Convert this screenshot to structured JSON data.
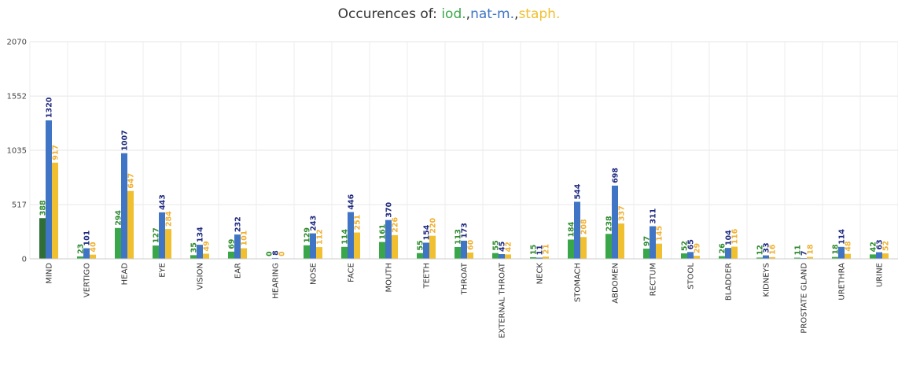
{
  "chart_data": {
    "type": "bar",
    "title": {
      "prefix": "Occurences of: ",
      "parts": [
        {
          "text": "iod.",
          "color": "#3aa64a"
        },
        {
          "text": ",",
          "color": "#333333"
        },
        {
          "text": "nat-m.",
          "color": "#3f75c4"
        },
        {
          "text": ",",
          "color": "#333333"
        },
        {
          "text": "staph.",
          "color": "#f0c030"
        }
      ]
    },
    "categories": [
      "MIND",
      "VERTIGO",
      "HEAD",
      "EYE",
      "VISION",
      "EAR",
      "HEARING",
      "NOSE",
      "FACE",
      "MOUTH",
      "TEETH",
      "THROAT",
      "EXTERNAL THROAT",
      "NECK",
      "STOMACH",
      "ABDOMEN",
      "RECTUM",
      "STOOL",
      "BLADDER",
      "KIDNEYS",
      "PROSTATE GLAND",
      "URETHRA",
      "URINE"
    ],
    "series": [
      {
        "name": "iod.",
        "color": "#3aa64a",
        "label_color": "#2e8b2e",
        "values": [
          388,
          23,
          294,
          127,
          35,
          69,
          0,
          129,
          114,
          161,
          55,
          113,
          55,
          15,
          184,
          238,
          97,
          52,
          26,
          12,
          11,
          18,
          42
        ]
      },
      {
        "name": "nat-m.",
        "color": "#3f75c4",
        "label_color": "#1f2a80",
        "values": [
          1320,
          101,
          1007,
          443,
          134,
          232,
          8,
          243,
          446,
          370,
          154,
          173,
          45,
          11,
          544,
          698,
          311,
          65,
          104,
          33,
          7,
          114,
          63
        ]
      },
      {
        "name": "staph.",
        "color": "#f0c030",
        "label_color": "#f0b030",
        "values": [
          917,
          40,
          647,
          284,
          49,
          101,
          0,
          112,
          251,
          226,
          220,
          60,
          42,
          21,
          208,
          337,
          145,
          29,
          116,
          16,
          18,
          48,
          52
        ]
      }
    ],
    "highlight": {
      "category": "MIND",
      "series": "iod.",
      "color": "#2f6e35"
    },
    "yticks": [
      0,
      517,
      1035,
      1552,
      2070
    ],
    "ylim": [
      0,
      2070
    ],
    "grid": true
  }
}
